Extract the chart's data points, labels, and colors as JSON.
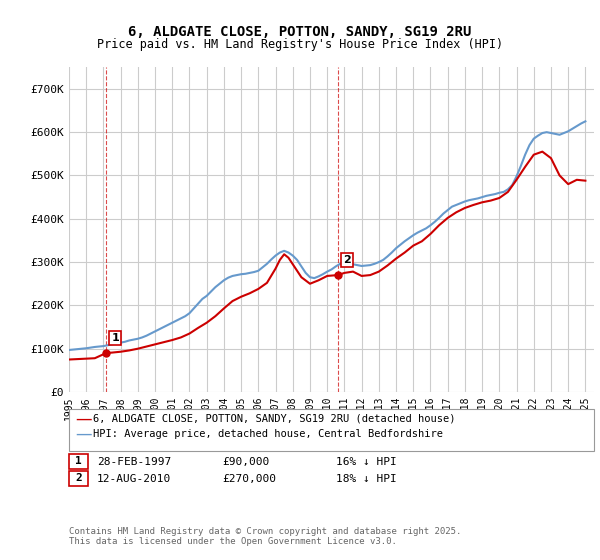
{
  "title": "6, ALDGATE CLOSE, POTTON, SANDY, SG19 2RU",
  "subtitle": "Price paid vs. HM Land Registry's House Price Index (HPI)",
  "ylabel": "",
  "ylim": [
    0,
    750000
  ],
  "yticks": [
    0,
    100000,
    200000,
    300000,
    400000,
    500000,
    600000,
    700000
  ],
  "ytick_labels": [
    "£0",
    "£100K",
    "£200K",
    "£300K",
    "£400K",
    "£500K",
    "£600K",
    "£700K"
  ],
  "xlim_start": 1995.0,
  "xlim_end": 2025.5,
  "background_color": "#ffffff",
  "grid_color": "#cccccc",
  "hpi_color": "#6699cc",
  "price_color": "#cc0000",
  "marker1_date": 1997.16,
  "marker1_label": "1",
  "marker1_price": 90000,
  "marker2_date": 2010.62,
  "marker2_label": "2",
  "marker2_price": 270000,
  "legend_label1": "6, ALDGATE CLOSE, POTTON, SANDY, SG19 2RU (detached house)",
  "legend_label2": "HPI: Average price, detached house, Central Bedfordshire",
  "note1_label": "1",
  "note1_date": "28-FEB-1997",
  "note1_price": "£90,000",
  "note1_hpi": "16% ↓ HPI",
  "note2_label": "2",
  "note2_date": "12-AUG-2010",
  "note2_price": "£270,000",
  "note2_hpi": "18% ↓ HPI",
  "footer": "Contains HM Land Registry data © Crown copyright and database right 2025.\nThis data is licensed under the Open Government Licence v3.0.",
  "hpi_x": [
    1995.0,
    1995.25,
    1995.5,
    1995.75,
    1996.0,
    1996.25,
    1996.5,
    1996.75,
    1997.0,
    1997.25,
    1997.5,
    1997.75,
    1998.0,
    1998.25,
    1998.5,
    1998.75,
    1999.0,
    1999.25,
    1999.5,
    1999.75,
    2000.0,
    2000.25,
    2000.5,
    2000.75,
    2001.0,
    2001.25,
    2001.5,
    2001.75,
    2002.0,
    2002.25,
    2002.5,
    2002.75,
    2003.0,
    2003.25,
    2003.5,
    2003.75,
    2004.0,
    2004.25,
    2004.5,
    2004.75,
    2005.0,
    2005.25,
    2005.5,
    2005.75,
    2006.0,
    2006.25,
    2006.5,
    2006.75,
    2007.0,
    2007.25,
    2007.5,
    2007.75,
    2008.0,
    2008.25,
    2008.5,
    2008.75,
    2009.0,
    2009.25,
    2009.5,
    2009.75,
    2010.0,
    2010.25,
    2010.5,
    2010.75,
    2011.0,
    2011.25,
    2011.5,
    2011.75,
    2012.0,
    2012.25,
    2012.5,
    2012.75,
    2013.0,
    2013.25,
    2013.5,
    2013.75,
    2014.0,
    2014.25,
    2014.5,
    2014.75,
    2015.0,
    2015.25,
    2015.5,
    2015.75,
    2016.0,
    2016.25,
    2016.5,
    2016.75,
    2017.0,
    2017.25,
    2017.5,
    2017.75,
    2018.0,
    2018.25,
    2018.5,
    2018.75,
    2019.0,
    2019.25,
    2019.5,
    2019.75,
    2020.0,
    2020.25,
    2020.5,
    2020.75,
    2021.0,
    2021.25,
    2021.5,
    2021.75,
    2022.0,
    2022.25,
    2022.5,
    2022.75,
    2023.0,
    2023.25,
    2023.5,
    2023.75,
    2024.0,
    2024.25,
    2024.5,
    2024.75,
    2025.0
  ],
  "hpi_y": [
    97000,
    98000,
    99000,
    100000,
    101000,
    102500,
    104000,
    105000,
    106000,
    108000,
    110000,
    112000,
    114000,
    116000,
    119000,
    121000,
    123000,
    126000,
    130000,
    135000,
    140000,
    145000,
    150000,
    155000,
    160000,
    165000,
    170000,
    175000,
    182000,
    193000,
    204000,
    215000,
    222000,
    232000,
    242000,
    250000,
    258000,
    264000,
    268000,
    270000,
    272000,
    273000,
    275000,
    277000,
    280000,
    288000,
    296000,
    306000,
    315000,
    322000,
    326000,
    322000,
    315000,
    305000,
    290000,
    275000,
    265000,
    263000,
    267000,
    272000,
    278000,
    283000,
    290000,
    296000,
    298000,
    296000,
    295000,
    293000,
    291000,
    292000,
    293000,
    296000,
    300000,
    305000,
    313000,
    322000,
    332000,
    340000,
    348000,
    355000,
    362000,
    368000,
    373000,
    378000,
    385000,
    393000,
    402000,
    412000,
    420000,
    428000,
    432000,
    436000,
    440000,
    443000,
    445000,
    447000,
    450000,
    453000,
    455000,
    457000,
    460000,
    462000,
    468000,
    478000,
    498000,
    522000,
    548000,
    570000,
    585000,
    592000,
    598000,
    600000,
    598000,
    596000,
    594000,
    598000,
    602000,
    608000,
    614000,
    620000,
    625000
  ],
  "price_x": [
    1995.0,
    1995.5,
    1996.0,
    1996.5,
    1997.16,
    1997.5,
    1998.0,
    1998.5,
    1999.0,
    1999.5,
    2000.0,
    2000.5,
    2001.0,
    2001.5,
    2002.0,
    2002.5,
    2003.0,
    2003.5,
    2004.0,
    2004.5,
    2005.0,
    2005.5,
    2006.0,
    2006.5,
    2007.0,
    2007.25,
    2007.5,
    2007.75,
    2008.0,
    2008.25,
    2008.5,
    2009.0,
    2009.5,
    2010.0,
    2010.62,
    2011.0,
    2011.5,
    2012.0,
    2012.5,
    2013.0,
    2013.5,
    2014.0,
    2014.5,
    2015.0,
    2015.5,
    2016.0,
    2016.5,
    2017.0,
    2017.5,
    2018.0,
    2018.5,
    2019.0,
    2019.5,
    2020.0,
    2020.5,
    2021.0,
    2021.5,
    2022.0,
    2022.5,
    2023.0,
    2023.5,
    2024.0,
    2024.5,
    2025.0
  ],
  "price_y": [
    75000,
    76000,
    77000,
    78000,
    90000,
    91000,
    93000,
    96000,
    100000,
    105000,
    110000,
    115000,
    120000,
    126000,
    135000,
    148000,
    160000,
    175000,
    193000,
    210000,
    220000,
    228000,
    238000,
    252000,
    285000,
    305000,
    318000,
    310000,
    295000,
    280000,
    265000,
    250000,
    258000,
    268000,
    270000,
    275000,
    278000,
    268000,
    270000,
    278000,
    292000,
    308000,
    322000,
    338000,
    348000,
    365000,
    385000,
    402000,
    415000,
    425000,
    432000,
    438000,
    442000,
    448000,
    462000,
    490000,
    520000,
    548000,
    555000,
    540000,
    500000,
    480000,
    490000,
    488000
  ]
}
